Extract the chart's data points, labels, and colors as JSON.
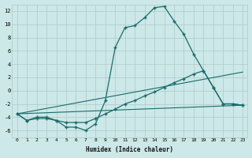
{
  "xlabel": "Humidex (Indice chaleur)",
  "ylabel": "",
  "bg_color": "#cce8e8",
  "grid_color": "#b0c8c8",
  "line_color": "#1a6b6b",
  "xlim": [
    -0.5,
    23.5
  ],
  "ylim": [
    -7,
    13
  ],
  "xticks": [
    0,
    1,
    2,
    3,
    4,
    5,
    6,
    7,
    8,
    9,
    10,
    11,
    12,
    13,
    14,
    15,
    16,
    17,
    18,
    19,
    20,
    21,
    22,
    23
  ],
  "yticks": [
    -6,
    -4,
    -2,
    0,
    2,
    4,
    6,
    8,
    10,
    12
  ],
  "curve1_x": [
    0,
    1,
    2,
    3,
    4,
    5,
    6,
    7,
    8,
    9,
    10,
    11,
    12,
    13,
    14,
    15,
    16,
    17,
    18,
    19,
    20,
    21,
    22,
    23
  ],
  "curve1_y": [
    -3.5,
    -4.5,
    -4,
    -4,
    -4.5,
    -5.5,
    -5.5,
    -6,
    -5,
    -1.5,
    6.5,
    9.5,
    9.8,
    11,
    12.5,
    12.7,
    10.5,
    8.5,
    5.5,
    3,
    0.5,
    -2,
    -2,
    -2.2
  ],
  "curve2_x": [
    0,
    1,
    2,
    3,
    4,
    5,
    6,
    7,
    8,
    9,
    10,
    11,
    12,
    13,
    14,
    15,
    16,
    17,
    18,
    19,
    20,
    21,
    22,
    23
  ],
  "curve2_y": [
    -3.5,
    -4.5,
    -4.2,
    -4.2,
    -4.5,
    -4.8,
    -4.8,
    -4.8,
    -4.2,
    -3.5,
    -2.8,
    -2.0,
    -1.5,
    -0.8,
    -0.2,
    0.5,
    1.2,
    1.8,
    2.5,
    3.0,
    0.5,
    -2,
    -2,
    -2.2
  ],
  "curve3_x": [
    0,
    23
  ],
  "curve3_y": [
    -3.5,
    2.8
  ],
  "curve4_x": [
    0,
    23
  ],
  "curve4_y": [
    -3.5,
    -2.2
  ]
}
